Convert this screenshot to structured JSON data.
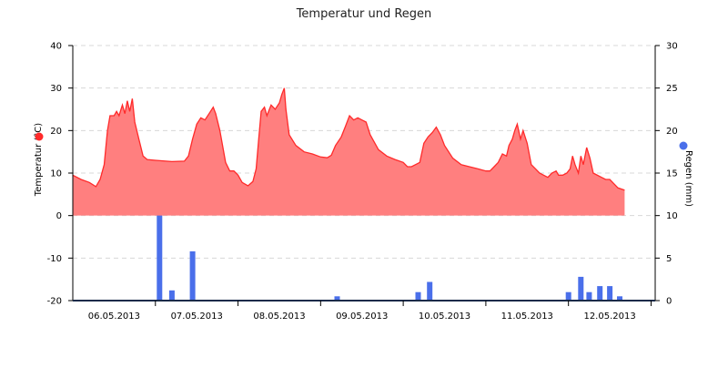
{
  "chart_data": {
    "type": "area+bar",
    "title": "Temperatur und Regen",
    "left_axis": {
      "label": "Temperatur (°C)",
      "ylim": [
        -20,
        40
      ],
      "ticks": [
        "40",
        "30",
        "20",
        "10",
        "0",
        "-10",
        "-20"
      ]
    },
    "right_axis": {
      "label": "Regen (mm)",
      "ylim": [
        0,
        30
      ],
      "ticks": [
        "30",
        "25",
        "20",
        "15",
        "10",
        "5",
        "0"
      ]
    },
    "x_axis": {
      "range_days": [
        0,
        7.05
      ],
      "ticks": [
        "06.05.2013",
        "07.05.2013",
        "08.05.2013",
        "09.05.2013",
        "10.05.2013",
        "11.05.2013",
        "12.05.2013"
      ]
    },
    "grid": "horizontal dashed",
    "legend": "colored dots next to axis labels",
    "series": [
      {
        "name": "Temperatur (°C)",
        "type": "area",
        "color": "#ff2a2a",
        "fill": "#ff7f7f",
        "axis": "left",
        "points": [
          [
            0.0,
            9.5
          ],
          [
            0.1,
            8.5
          ],
          [
            0.2,
            7.8
          ],
          [
            0.28,
            6.8
          ],
          [
            0.33,
            8.5
          ],
          [
            0.38,
            12
          ],
          [
            0.42,
            20
          ],
          [
            0.45,
            23.5
          ],
          [
            0.5,
            23.5
          ],
          [
            0.53,
            24.5
          ],
          [
            0.56,
            23.5
          ],
          [
            0.6,
            26
          ],
          [
            0.63,
            24
          ],
          [
            0.66,
            27
          ],
          [
            0.69,
            24.5
          ],
          [
            0.72,
            27.5
          ],
          [
            0.75,
            22
          ],
          [
            0.8,
            18
          ],
          [
            0.85,
            14
          ],
          [
            0.9,
            13.2
          ],
          [
            1.0,
            13
          ],
          [
            1.2,
            12.7
          ],
          [
            1.35,
            12.8
          ],
          [
            1.4,
            14
          ],
          [
            1.45,
            18
          ],
          [
            1.5,
            21.5
          ],
          [
            1.55,
            23
          ],
          [
            1.6,
            22.5
          ],
          [
            1.65,
            24
          ],
          [
            1.7,
            25.5
          ],
          [
            1.73,
            24
          ],
          [
            1.78,
            20
          ],
          [
            1.85,
            12.5
          ],
          [
            1.9,
            10.5
          ],
          [
            1.95,
            10.5
          ],
          [
            2.0,
            9.5
          ],
          [
            2.05,
            7.8
          ],
          [
            2.12,
            7
          ],
          [
            2.18,
            8
          ],
          [
            2.22,
            11
          ],
          [
            2.25,
            18
          ],
          [
            2.28,
            24.5
          ],
          [
            2.32,
            25.5
          ],
          [
            2.35,
            23.5
          ],
          [
            2.4,
            26
          ],
          [
            2.45,
            25
          ],
          [
            2.5,
            26.5
          ],
          [
            2.53,
            28.5
          ],
          [
            2.56,
            30
          ],
          [
            2.58,
            25
          ],
          [
            2.62,
            19
          ],
          [
            2.7,
            16.5
          ],
          [
            2.8,
            15
          ],
          [
            2.9,
            14.5
          ],
          [
            3.0,
            13.8
          ],
          [
            3.08,
            13.6
          ],
          [
            3.13,
            14.2
          ],
          [
            3.18,
            16.5
          ],
          [
            3.25,
            18.5
          ],
          [
            3.3,
            21
          ],
          [
            3.35,
            23.5
          ],
          [
            3.4,
            22.5
          ],
          [
            3.45,
            23
          ],
          [
            3.5,
            22.5
          ],
          [
            3.55,
            22
          ],
          [
            3.6,
            19
          ],
          [
            3.7,
            15.5
          ],
          [
            3.8,
            14
          ],
          [
            3.9,
            13.2
          ],
          [
            4.0,
            12.5
          ],
          [
            4.05,
            11.5
          ],
          [
            4.1,
            11.5
          ],
          [
            4.15,
            12
          ],
          [
            4.2,
            12.5
          ],
          [
            4.25,
            17
          ],
          [
            4.3,
            18.5
          ],
          [
            4.35,
            19.5
          ],
          [
            4.4,
            20.8
          ],
          [
            4.45,
            19
          ],
          [
            4.5,
            16.5
          ],
          [
            4.6,
            13.5
          ],
          [
            4.7,
            12
          ],
          [
            4.8,
            11.5
          ],
          [
            4.9,
            11
          ],
          [
            5.0,
            10.5
          ],
          [
            5.05,
            10.5
          ],
          [
            5.1,
            11.5
          ],
          [
            5.15,
            12.5
          ],
          [
            5.2,
            14.5
          ],
          [
            5.25,
            14
          ],
          [
            5.28,
            16.5
          ],
          [
            5.32,
            18
          ],
          [
            5.35,
            20
          ],
          [
            5.38,
            21.5
          ],
          [
            5.42,
            18
          ],
          [
            5.45,
            20
          ],
          [
            5.5,
            17
          ],
          [
            5.55,
            12
          ],
          [
            5.6,
            11
          ],
          [
            5.65,
            10
          ],
          [
            5.7,
            9.5
          ],
          [
            5.75,
            9
          ],
          [
            5.8,
            10
          ],
          [
            5.85,
            10.5
          ],
          [
            5.88,
            9.5
          ],
          [
            5.93,
            9.5
          ],
          [
            5.98,
            10
          ],
          [
            6.02,
            11
          ],
          [
            6.05,
            14
          ],
          [
            6.08,
            12
          ],
          [
            6.12,
            10
          ],
          [
            6.15,
            14
          ],
          [
            6.18,
            12
          ],
          [
            6.22,
            16
          ],
          [
            6.26,
            13.5
          ],
          [
            6.3,
            10
          ],
          [
            6.4,
            9
          ],
          [
            6.45,
            8.5
          ],
          [
            6.5,
            8.5
          ],
          [
            6.55,
            7.5
          ],
          [
            6.6,
            6.5
          ],
          [
            6.68,
            6
          ]
        ]
      },
      {
        "name": "Regen (mm)",
        "type": "bar",
        "color": "#4a6fea",
        "axis": "right",
        "points": [
          [
            1.05,
            11
          ],
          [
            1.2,
            1.2
          ],
          [
            1.45,
            5.8
          ],
          [
            3.2,
            0.5
          ],
          [
            4.18,
            1.0
          ],
          [
            4.32,
            2.2
          ],
          [
            6.0,
            1.0
          ],
          [
            6.15,
            2.8
          ],
          [
            6.25,
            1.0
          ],
          [
            6.38,
            1.7
          ],
          [
            6.5,
            1.7
          ],
          [
            6.62,
            0.5
          ]
        ]
      }
    ]
  }
}
